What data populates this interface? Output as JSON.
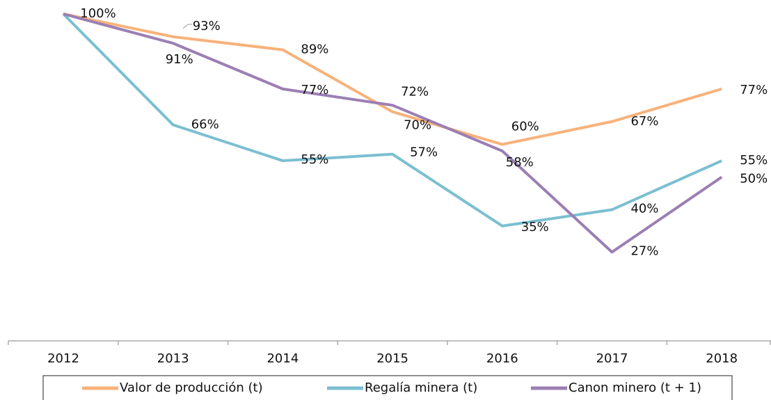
{
  "chart_data": {
    "type": "line",
    "categories": [
      "2012",
      "2013",
      "2014",
      "2015",
      "2016",
      "2017",
      "2018"
    ],
    "series": [
      {
        "name": "Valor de producción (t)",
        "color": "#f7b27a",
        "values": [
          100,
          93,
          89,
          70,
          60,
          67,
          77
        ],
        "value_labels": [
          "100%",
          "93%",
          "89%",
          "70%",
          "60%",
          "67%",
          "77%"
        ]
      },
      {
        "name": "Regalía minera (t)",
        "color": "#7bbfd1",
        "values": [
          100,
          66,
          55,
          57,
          35,
          40,
          55
        ],
        "value_labels": [
          null,
          "66%",
          "55%",
          "57%",
          "35%",
          "40%",
          "55%"
        ]
      },
      {
        "name": "Canon minero (t + 1)",
        "color": "#9b7fb3",
        "values": [
          100,
          91,
          77,
          72,
          58,
          27,
          50
        ],
        "value_labels": [
          null,
          "91%",
          "77%",
          "72%",
          "58%",
          "27%",
          "50%"
        ]
      }
    ],
    "ylim": [
      0,
      100
    ],
    "legend": "bottom"
  }
}
